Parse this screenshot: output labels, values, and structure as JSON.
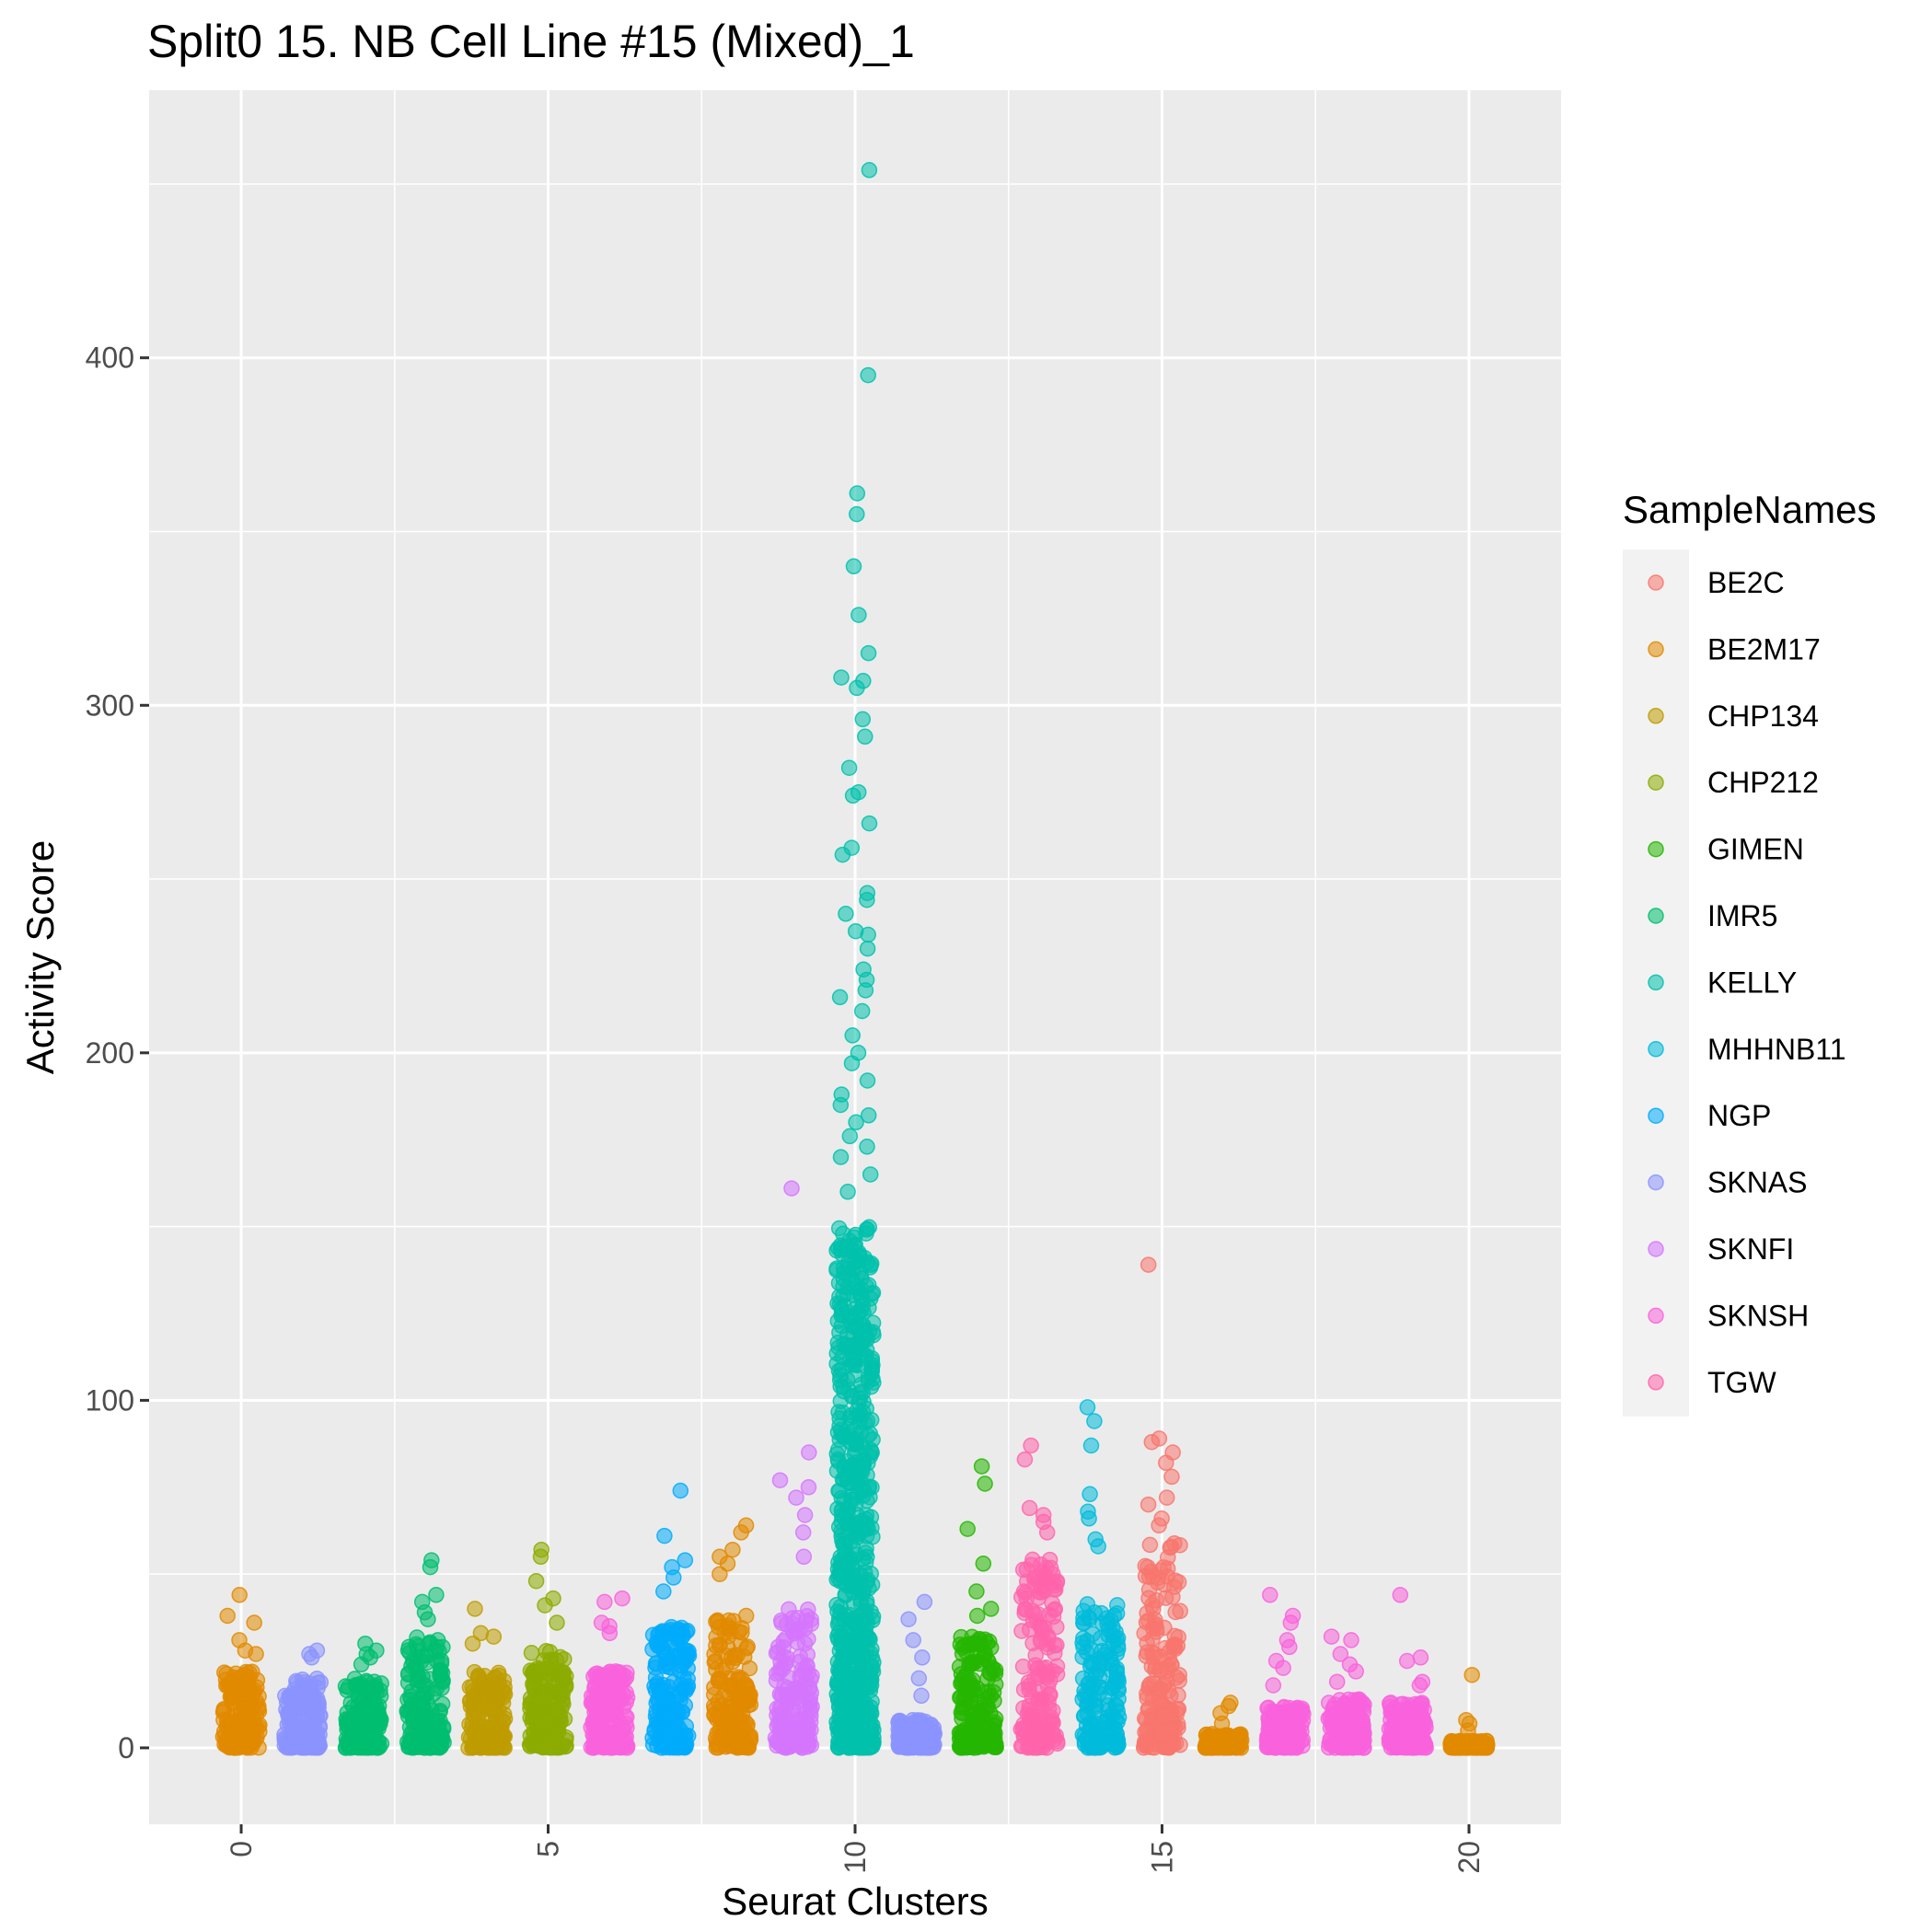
{
  "chart_data": {
    "type": "scatter",
    "title": "Split0 15. NB Cell Line #15 (Mixed)_1",
    "xlabel": "Seurat Clusters",
    "ylabel": "Activity Score",
    "xlim": [
      -1.5,
      21.5
    ],
    "ylim": [
      -22,
      477
    ],
    "x_ticks": [
      0,
      5,
      10,
      15,
      20
    ],
    "y_ticks": [
      0,
      100,
      200,
      300,
      400
    ],
    "grid": true,
    "legend": {
      "title": "SampleNames",
      "position": "right",
      "entries": [
        {
          "name": "BE2C",
          "color": "#F8766D"
        },
        {
          "name": "BE2M17",
          "color": "#E18A00"
        },
        {
          "name": "CHP134",
          "color": "#BE9C00"
        },
        {
          "name": "CHP212",
          "color": "#8CAB00"
        },
        {
          "name": "GIMEN",
          "color": "#24B700"
        },
        {
          "name": "IMR5",
          "color": "#00BE70"
        },
        {
          "name": "KELLY",
          "color": "#00C1AB"
        },
        {
          "name": "MHHNB11",
          "color": "#00BBDA"
        },
        {
          "name": "NGP",
          "color": "#00ACFC"
        },
        {
          "name": "SKNAS",
          "color": "#8B93FF"
        },
        {
          "name": "SKNFI",
          "color": "#D575FE"
        },
        {
          "name": "SKNSH",
          "color": "#F962DD"
        },
        {
          "name": "TGW",
          "color": "#FF65AC"
        }
      ]
    },
    "clusters": [
      {
        "cluster": 0,
        "sample": "BE2M17",
        "typical_max": 22,
        "outliers": [
          44,
          38,
          36,
          31,
          28,
          27
        ]
      },
      {
        "cluster": 1,
        "sample": "SKNAS",
        "typical_max": 20,
        "outliers": [
          28,
          27,
          26
        ]
      },
      {
        "cluster": 2,
        "sample": "IMR5",
        "typical_max": 20,
        "outliers": [
          30,
          28,
          27,
          26,
          24
        ]
      },
      {
        "cluster": 3,
        "sample": "IMR5",
        "typical_max": 32,
        "outliers": [
          54,
          52,
          44,
          42,
          39,
          37
        ]
      },
      {
        "cluster": 4,
        "sample": "CHP134",
        "typical_max": 22,
        "outliers": [
          40,
          33,
          32,
          30
        ]
      },
      {
        "cluster": 5,
        "sample": "CHP212",
        "typical_max": 28,
        "outliers": [
          57,
          55,
          48,
          43,
          41,
          36
        ]
      },
      {
        "cluster": 6,
        "sample": "SKNSH",
        "typical_max": 22,
        "outliers": [
          43,
          42,
          36,
          35,
          33
        ]
      },
      {
        "cluster": 7,
        "sample": "NGP",
        "typical_max": 35,
        "outliers": [
          74,
          61,
          54,
          52,
          49,
          45
        ]
      },
      {
        "cluster": 8,
        "sample": "BE2M17",
        "typical_max": 38,
        "outliers": [
          64,
          62,
          57,
          55,
          53,
          50
        ]
      },
      {
        "cluster": 9,
        "sample": "SKNFI",
        "typical_max": 40,
        "outliers": [
          161,
          85,
          77,
          75,
          72,
          67,
          62,
          55
        ]
      },
      {
        "cluster": 10,
        "sample": "KELLY",
        "typical_max": 150,
        "outliers": [
          454,
          395,
          361,
          355,
          340,
          326,
          315,
          308,
          307,
          305,
          296,
          291,
          282,
          275,
          274,
          266,
          259,
          257,
          246,
          244,
          240,
          235,
          234,
          230,
          224,
          221,
          218,
          216,
          212,
          205,
          200,
          197,
          192,
          188,
          185,
          182,
          180,
          176,
          173,
          170,
          165,
          160,
          0,
          4,
          8
        ]
      },
      {
        "cluster": 11,
        "sample": "SKNAS",
        "typical_max": 8,
        "outliers": [
          42,
          37,
          31,
          26,
          20,
          15
        ]
      },
      {
        "cluster": 12,
        "sample": "GIMEN",
        "typical_max": 32,
        "outliers": [
          81,
          76,
          63,
          53,
          45,
          40,
          38
        ]
      },
      {
        "cluster": 13,
        "sample": "TGW",
        "typical_max": 55,
        "outliers": [
          87,
          83,
          69,
          67,
          65,
          62
        ]
      },
      {
        "cluster": 14,
        "sample": "MHHNB11",
        "typical_max": 42,
        "outliers": [
          98,
          94,
          87,
          73,
          68,
          66,
          60,
          58
        ]
      },
      {
        "cluster": 15,
        "sample": "BE2C",
        "typical_max": 60,
        "outliers": [
          139,
          89,
          88,
          85,
          82,
          78,
          72,
          70,
          66,
          64
        ]
      },
      {
        "cluster": 16,
        "sample": "BE2M17",
        "typical_max": 4,
        "outliers": [
          13,
          12,
          10,
          7
        ]
      },
      {
        "cluster": 17,
        "sample": "SKNSH",
        "typical_max": 12,
        "outliers": [
          44,
          38,
          36,
          31,
          29,
          25,
          23,
          18
        ]
      },
      {
        "cluster": 18,
        "sample": "SKNSH",
        "typical_max": 14,
        "outliers": [
          32,
          31,
          27,
          24,
          22,
          19
        ]
      },
      {
        "cluster": 19,
        "sample": "SKNSH",
        "typical_max": 13,
        "outliers": [
          44,
          26,
          25,
          19,
          18
        ]
      },
      {
        "cluster": 20,
        "sample": "BE2M17",
        "typical_max": 2,
        "outliers": [
          21,
          8,
          7,
          5
        ]
      }
    ]
  }
}
